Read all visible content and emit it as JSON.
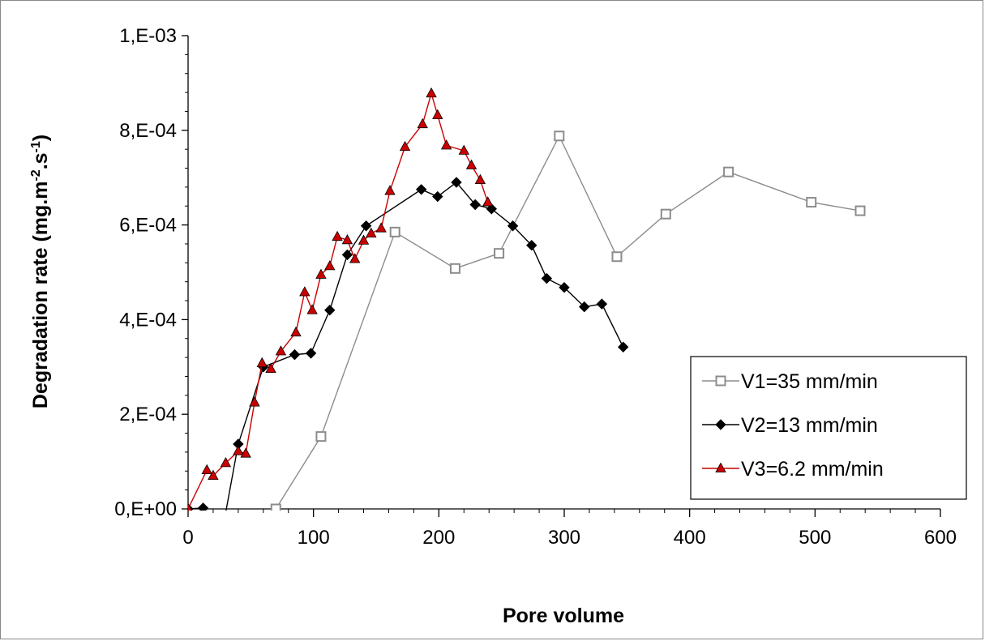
{
  "chart_data": {
    "type": "scatter",
    "xlabel": "Pore volume",
    "ylabel": "Degradation rate (mg.m",
    "ylabel_sup1": "-2",
    "ylabel_mid": ".s",
    "ylabel_sup2": "-1",
    "ylabel_end": ")",
    "xlim": [
      0,
      600
    ],
    "ylim": [
      0,
      0.001
    ],
    "x_ticks": [
      0,
      100,
      200,
      300,
      400,
      500,
      600
    ],
    "x_tick_labels": [
      "0",
      "100",
      "200",
      "300",
      "400",
      "500",
      "600"
    ],
    "y_ticks": [
      0,
      0.0002,
      0.0004,
      0.0006,
      0.0008,
      0.001
    ],
    "y_tick_labels": [
      "0,E+00",
      "2,E-04",
      "4,E-04",
      "6,E-04",
      "8,E-04",
      "1,E-03"
    ],
    "grid": false,
    "legend_position": "bottom-right",
    "series": [
      {
        "name": "V1=35 mm/min",
        "color": "#8c8c8c",
        "marker": "square-open",
        "points": [
          [
            70,
            0.0
          ],
          [
            106,
            0.000153
          ],
          [
            165,
            0.000585
          ],
          [
            213,
            0.000508
          ],
          [
            248,
            0.00054
          ],
          [
            296,
            0.000788
          ],
          [
            342,
            0.000533
          ],
          [
            381,
            0.000623
          ],
          [
            431,
            0.000712
          ],
          [
            497,
            0.000648
          ],
          [
            536,
            0.00063
          ]
        ]
      },
      {
        "name": "V2=13 mm/min",
        "color": "#000000",
        "marker": "diamond",
        "points": [
          [
            0,
            0.0
          ],
          [
            12,
            2e-06
          ],
          [
            25,
            -8e-05
          ],
          [
            40,
            0.000137
          ],
          [
            60,
            0.0003
          ],
          [
            85,
            0.000326
          ],
          [
            98,
            0.000329
          ],
          [
            113,
            0.00042
          ],
          [
            127,
            0.000537
          ],
          [
            142,
            0.000598
          ],
          [
            186,
            0.000675
          ],
          [
            199,
            0.00066
          ],
          [
            214,
            0.00069
          ],
          [
            229,
            0.000643
          ],
          [
            242,
            0.000634
          ],
          [
            259,
            0.000598
          ],
          [
            274,
            0.000557
          ],
          [
            286,
            0.000487
          ],
          [
            300,
            0.000468
          ],
          [
            316,
            0.000427
          ],
          [
            330,
            0.000433
          ],
          [
            347,
            0.000342
          ]
        ]
      },
      {
        "name": "V3=6.2 mm/min",
        "color": "#cc0000",
        "marker": "triangle",
        "points": [
          [
            0,
            0.0
          ],
          [
            15,
            8.2e-05
          ],
          [
            20,
            7e-05
          ],
          [
            30,
            9.7e-05
          ],
          [
            40,
            0.000122
          ],
          [
            46,
            0.000117
          ],
          [
            53,
            0.000225
          ],
          [
            59,
            0.000308
          ],
          [
            66,
            0.000296
          ],
          [
            74,
            0.000333
          ],
          [
            86,
            0.000373
          ],
          [
            93,
            0.000458
          ],
          [
            99,
            0.00042
          ],
          [
            106,
            0.000495
          ],
          [
            113,
            0.000513
          ],
          [
            119,
            0.000575
          ],
          [
            127,
            0.000568
          ],
          [
            133,
            0.000528
          ],
          [
            140,
            0.000567
          ],
          [
            146,
            0.000582
          ],
          [
            154,
            0.000593
          ],
          [
            161,
            0.000672
          ],
          [
            173,
            0.000765
          ],
          [
            187,
            0.000813
          ],
          [
            194,
            0.000878
          ],
          [
            199,
            0.000832
          ],
          [
            206,
            0.000768
          ],
          [
            220,
            0.000757
          ],
          [
            226,
            0.000726
          ],
          [
            233,
            0.000695
          ],
          [
            239,
            0.000648
          ]
        ]
      }
    ]
  }
}
